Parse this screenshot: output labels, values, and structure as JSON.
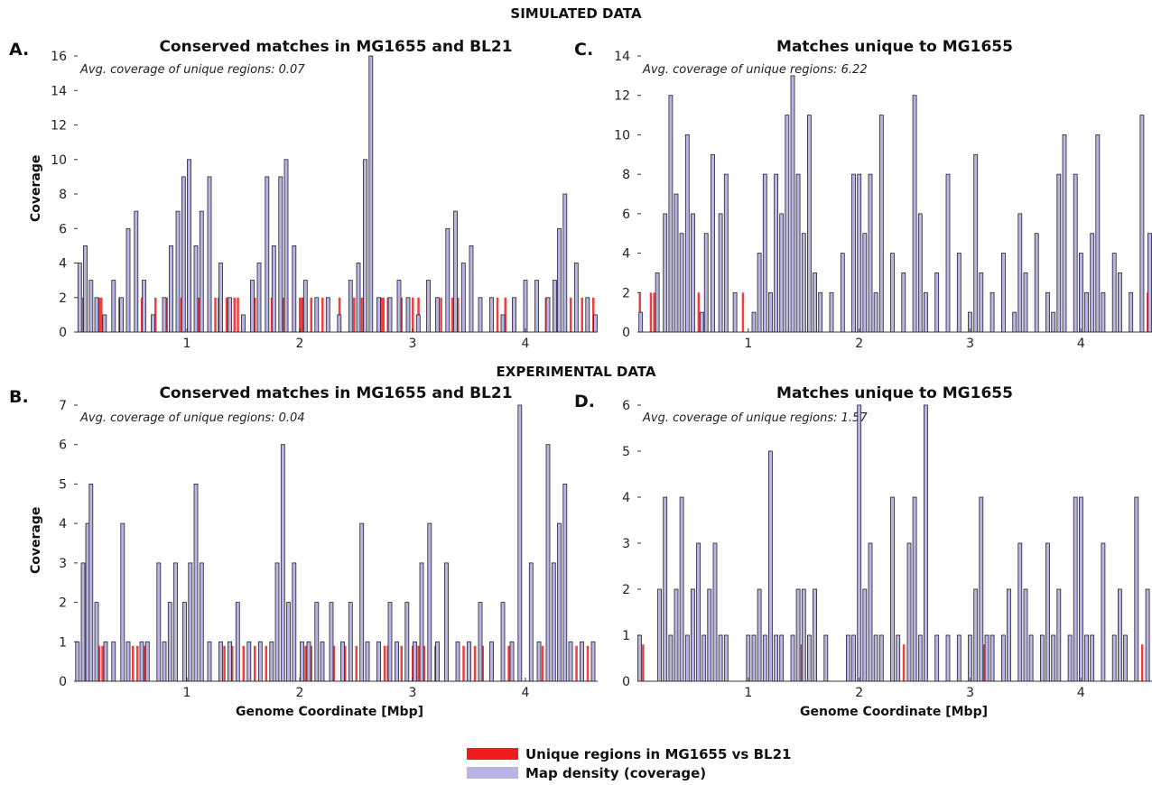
{
  "headings": {
    "simulated": "SIMULATED DATA",
    "experimental": "EXPERIMENTAL DATA"
  },
  "xlabel": "Genome Coordinate [Mbp]",
  "ylabel": "Coverage",
  "legend": {
    "unique_label": "Unique regions in MG1655 vs BL21",
    "density_label": "Map density (coverage)"
  },
  "colors": {
    "density": "#b9b4e6",
    "unique": "#ee1c1c",
    "outline": "#222222"
  },
  "panels": [
    {
      "letter": "A.",
      "title": "Conserved matches in MG1655 and BL21",
      "annotation": "Avg. coverage of unique regions: 0.07"
    },
    {
      "letter": "C.",
      "title": "Matches unique to MG1655",
      "annotation": "Avg. coverage of unique regions: 6.22"
    },
    {
      "letter": "B.",
      "title": "Conserved matches in MG1655 and BL21",
      "annotation": "Avg. coverage of unique regions: 0.04"
    },
    {
      "letter": "D.",
      "title": "Matches unique to MG1655",
      "annotation": "Avg. coverage of unique regions: 1.57"
    }
  ],
  "chart_data": [
    {
      "type": "area",
      "title": "Conserved matches in MG1655 and BL21",
      "xlabel": "",
      "ylabel": "Coverage",
      "xlim": [
        0,
        4.64
      ],
      "ylim": [
        0,
        16
      ],
      "xticks": [
        1,
        2,
        3,
        4
      ],
      "yticks": [
        0,
        2,
        4,
        6,
        8,
        10,
        12,
        14,
        16
      ],
      "unique_marker_height": 2,
      "series": [
        {
          "x": [
            0.05,
            0.1,
            0.15,
            0.2,
            0.27,
            0.35,
            0.42,
            0.48,
            0.55,
            0.62,
            0.7,
            0.8,
            0.86,
            0.92,
            0.97,
            1.02,
            1.08,
            1.13,
            1.2,
            1.3,
            1.38,
            1.5,
            1.58,
            1.64,
            1.71,
            1.77,
            1.83,
            1.88,
            1.95,
            2.05,
            2.15,
            2.25,
            2.35,
            2.45,
            2.52,
            2.58,
            2.63,
            2.7,
            2.8,
            2.88,
            2.96,
            3.05,
            3.14,
            3.22,
            3.31,
            3.38,
            3.45,
            3.52,
            3.6,
            3.7,
            3.8,
            3.9,
            4.0,
            4.1,
            4.2,
            4.26,
            4.3,
            4.35,
            4.45,
            4.55,
            4.62
          ],
          "values": [
            4,
            5,
            3,
            2,
            1,
            3,
            2,
            6,
            7,
            3,
            1,
            2,
            5,
            7,
            9,
            10,
            5,
            7,
            9,
            4,
            2,
            1,
            3,
            4,
            9,
            5,
            9,
            10,
            5,
            3,
            2,
            2,
            1,
            3,
            4,
            10,
            16,
            2,
            2,
            3,
            2,
            1,
            3,
            2,
            6,
            7,
            4,
            5,
            2,
            2,
            1,
            2,
            3,
            3,
            2,
            3,
            6,
            8,
            4,
            2,
            1
          ]
        }
      ],
      "unique_regions_x": [
        0.05,
        0.08,
        0.2,
        0.21,
        0.22,
        0.24,
        0.4,
        0.55,
        0.6,
        0.72,
        0.8,
        0.82,
        0.95,
        1.1,
        1.25,
        1.28,
        1.35,
        1.42,
        1.45,
        1.6,
        1.75,
        1.85,
        2.0,
        2.02,
        2.03,
        2.04,
        2.1,
        2.2,
        2.25,
        2.35,
        2.45,
        2.48,
        2.55,
        2.7,
        2.72,
        2.74,
        2.78,
        2.8,
        2.9,
        3.0,
        3.05,
        3.25,
        3.35,
        3.4,
        3.45,
        3.6,
        3.7,
        3.75,
        3.82,
        3.9,
        4.0,
        4.1,
        4.18,
        4.3,
        4.4,
        4.5,
        4.6
      ]
    },
    {
      "type": "area",
      "title": "Matches unique to MG1655",
      "xlabel": "",
      "ylabel": "",
      "xlim": [
        0,
        4.64
      ],
      "ylim": [
        0,
        14
      ],
      "xticks": [
        1,
        2,
        3,
        4
      ],
      "yticks": [
        0,
        2,
        4,
        6,
        8,
        10,
        12,
        14
      ],
      "unique_marker_height": 2,
      "series": [
        {
          "x": [
            0.03,
            0.1,
            0.18,
            0.25,
            0.3,
            0.35,
            0.4,
            0.45,
            0.5,
            0.58,
            0.62,
            0.68,
            0.75,
            0.8,
            0.88,
            0.96,
            1.05,
            1.1,
            1.15,
            1.2,
            1.25,
            1.3,
            1.35,
            1.4,
            1.45,
            1.5,
            1.55,
            1.6,
            1.65,
            1.75,
            1.85,
            1.95,
            2.0,
            2.05,
            2.1,
            2.15,
            2.2,
            2.3,
            2.4,
            2.5,
            2.55,
            2.6,
            2.7,
            2.8,
            2.9,
            3.0,
            3.05,
            3.1,
            3.2,
            3.3,
            3.4,
            3.45,
            3.5,
            3.6,
            3.7,
            3.75,
            3.8,
            3.85,
            3.95,
            4.0,
            4.05,
            4.1,
            4.15,
            4.2,
            4.3,
            4.35,
            4.45,
            4.55,
            4.62
          ],
          "values": [
            1,
            0,
            3,
            6,
            12,
            7,
            5,
            10,
            6,
            1,
            5,
            9,
            6,
            8,
            2,
            0,
            1,
            4,
            8,
            2,
            8,
            6,
            11,
            13,
            8,
            5,
            11,
            3,
            2,
            2,
            4,
            8,
            8,
            5,
            8,
            2,
            11,
            4,
            3,
            12,
            6,
            2,
            3,
            8,
            4,
            1,
            9,
            3,
            2,
            4,
            1,
            6,
            3,
            5,
            2,
            1,
            8,
            10,
            8,
            4,
            2,
            5,
            10,
            2,
            4,
            3,
            2,
            11,
            5
          ]
        }
      ],
      "unique_regions_x": [
        0.02,
        0.12,
        0.15,
        0.5,
        0.55,
        0.95,
        1.5,
        3.6,
        3.7,
        4.2,
        4.45,
        4.6
      ]
    },
    {
      "type": "area",
      "title": "Conserved matches in MG1655 and BL21",
      "xlabel": "Genome Coordinate [Mbp]",
      "ylabel": "Coverage",
      "xlim": [
        0,
        4.64
      ],
      "ylim": [
        0,
        7
      ],
      "xticks": [
        1,
        2,
        3,
        4
      ],
      "yticks": [
        0,
        1,
        2,
        3,
        4,
        5,
        6,
        7
      ],
      "unique_marker_height": 0.9,
      "series": [
        {
          "x": [
            0.03,
            0.08,
            0.12,
            0.15,
            0.2,
            0.28,
            0.35,
            0.43,
            0.48,
            0.6,
            0.65,
            0.75,
            0.8,
            0.85,
            0.9,
            0.98,
            1.03,
            1.08,
            1.13,
            1.2,
            1.3,
            1.38,
            1.45,
            1.55,
            1.65,
            1.75,
            1.8,
            1.85,
            1.9,
            1.95,
            2.02,
            2.08,
            2.15,
            2.2,
            2.28,
            2.38,
            2.45,
            2.55,
            2.6,
            2.7,
            2.8,
            2.86,
            2.95,
            3.02,
            3.08,
            3.15,
            3.22,
            3.3,
            3.4,
            3.5,
            3.6,
            3.7,
            3.8,
            3.88,
            3.95,
            4.05,
            4.12,
            4.2,
            4.25,
            4.3,
            4.35,
            4.4,
            4.5,
            4.6
          ],
          "values": [
            1,
            3,
            4,
            5,
            2,
            1,
            1,
            4,
            1,
            1,
            1,
            3,
            1,
            2,
            3,
            2,
            3,
            5,
            3,
            1,
            1,
            1,
            2,
            1,
            1,
            1,
            3,
            6,
            2,
            3,
            1,
            1,
            2,
            1,
            2,
            1,
            2,
            4,
            1,
            1,
            2,
            1,
            2,
            1,
            3,
            4,
            1,
            3,
            1,
            1,
            2,
            1,
            2,
            1,
            7,
            3,
            1,
            6,
            3,
            4,
            5,
            1,
            1,
            1
          ]
        }
      ],
      "unique_regions_x": [
        0.2,
        0.22,
        0.25,
        0.52,
        0.56,
        0.62,
        0.75,
        0.9,
        1.12,
        1.3,
        1.33,
        1.4,
        1.45,
        1.5,
        1.55,
        1.6,
        1.7,
        1.95,
        2.05,
        2.1,
        2.15,
        2.2,
        2.3,
        2.4,
        2.5,
        2.6,
        2.7,
        2.75,
        2.78,
        2.8,
        2.9,
        3.0,
        3.05,
        3.1,
        3.2,
        3.3,
        3.45,
        3.55,
        3.62,
        3.7,
        3.8,
        3.85,
        3.95,
        4.05,
        4.15,
        4.25,
        4.35,
        4.45,
        4.55
      ]
    },
    {
      "type": "area",
      "title": "Matches unique to MG1655",
      "xlabel": "Genome Coordinate [Mbp]",
      "ylabel": "",
      "xlim": [
        0,
        4.64
      ],
      "ylim": [
        0,
        6
      ],
      "xticks": [
        1,
        2,
        3,
        4
      ],
      "yticks": [
        0,
        1,
        2,
        3,
        4,
        5,
        6
      ],
      "unique_marker_height": 0.8,
      "series": [
        {
          "x": [
            0.02,
            0.1,
            0.2,
            0.25,
            0.3,
            0.35,
            0.4,
            0.45,
            0.5,
            0.55,
            0.6,
            0.65,
            0.7,
            0.75,
            0.8,
            0.9,
            1.0,
            1.05,
            1.1,
            1.15,
            1.2,
            1.25,
            1.3,
            1.4,
            1.45,
            1.5,
            1.55,
            1.6,
            1.7,
            1.8,
            1.9,
            1.95,
            2.0,
            2.05,
            2.1,
            2.15,
            2.2,
            2.3,
            2.35,
            2.45,
            2.5,
            2.55,
            2.6,
            2.7,
            2.8,
            2.9,
            3.0,
            3.05,
            3.1,
            3.15,
            3.2,
            3.3,
            3.35,
            3.45,
            3.5,
            3.55,
            3.65,
            3.7,
            3.75,
            3.8,
            3.9,
            3.95,
            4.0,
            4.05,
            4.1,
            4.2,
            4.3,
            4.35,
            4.4,
            4.5,
            4.6
          ],
          "values": [
            1,
            0,
            2,
            4,
            1,
            2,
            4,
            1,
            2,
            3,
            1,
            2,
            3,
            1,
            1,
            0,
            1,
            1,
            2,
            1,
            5,
            1,
            1,
            1,
            2,
            2,
            1,
            2,
            1,
            0,
            1,
            1,
            6,
            2,
            3,
            1,
            1,
            4,
            1,
            3,
            4,
            1,
            6,
            1,
            1,
            1,
            1,
            2,
            4,
            1,
            1,
            1,
            2,
            3,
            2,
            1,
            1,
            3,
            1,
            2,
            1,
            4,
            4,
            1,
            1,
            3,
            1,
            2,
            1,
            4,
            2
          ]
        }
      ],
      "unique_regions_x": [
        0.05,
        1.3,
        1.48,
        2.4,
        2.45,
        3.12,
        3.2,
        4.55
      ]
    }
  ]
}
